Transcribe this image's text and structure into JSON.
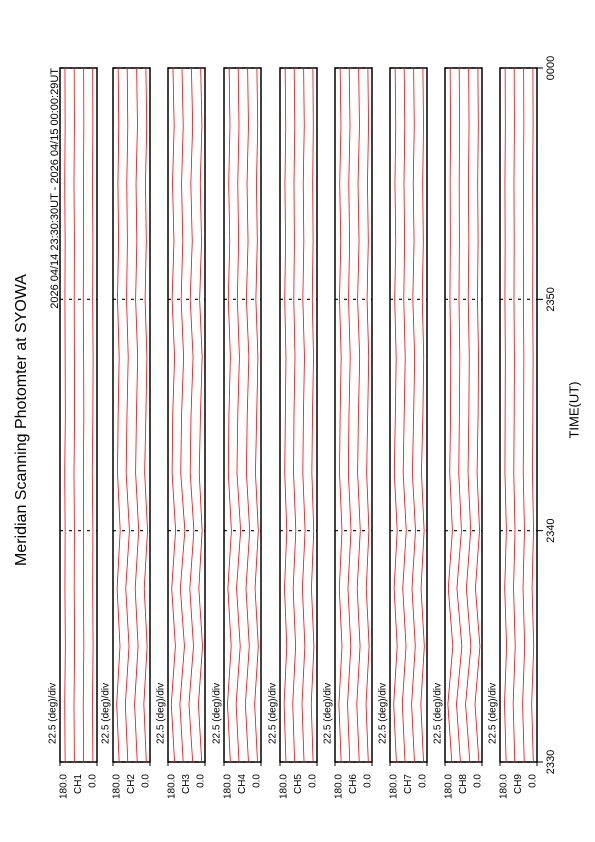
{
  "chart_data": {
    "type": "line",
    "color": "#ff0000",
    "title": "Meridian Scanning Photomter at SYOWA",
    "subtitle": "2026 04/14 23:30:30UT - 2026 04/15 00:00:29UT",
    "xlabel": "TIME(UT)",
    "xlim": [
      0,
      30
    ],
    "xticks": [
      {
        "value": 0,
        "label": "2330"
      },
      {
        "value": 10,
        "label": "2340"
      },
      {
        "value": 20,
        "label": "2350"
      },
      {
        "value": 30,
        "label": "0000"
      }
    ],
    "x": [
      0,
      2.5,
      5,
      7.5,
      10,
      12.5,
      15,
      17.5,
      20,
      22.5,
      25,
      27.5,
      30
    ],
    "panels": [
      {
        "label": "22.5 (deg)/div",
        "channel": "CH1",
        "ylim": [
          0,
          180
        ],
        "yticks": [
          {
            "value": 0,
            "label": "0.0"
          },
          {
            "value": 180,
            "label": "180.0"
          }
        ],
        "series": [
          {
            "values": [
              20,
              22,
              19,
              21,
              20,
              23,
              20,
              19,
              21,
              20,
              22,
              20,
              21
            ]
          },
          {
            "values": [
              65,
              67,
              64,
              66,
              65,
              66,
              64,
              65,
              67,
              65,
              66,
              64,
              65
            ]
          },
          {
            "values": [
              110,
              112,
              109,
              111,
              110,
              112,
              109,
              110,
              111,
              110,
              112,
              110,
              111
            ]
          },
          {
            "values": [
              155,
              157,
              154,
              156,
              155,
              157,
              154,
              155,
              156,
              155,
              157,
              155,
              156
            ]
          }
        ]
      },
      {
        "label": "22.5 (deg)/div",
        "channel": "CH2",
        "ylim": [
          0,
          180
        ],
        "yticks": [
          {
            "value": 0,
            "label": "0.0"
          },
          {
            "value": 180,
            "label": "180.0"
          }
        ],
        "series": [
          {
            "values": [
              18,
              30,
              14,
              28,
              12,
              26,
              20,
              15,
              24,
              18,
              22,
              16,
              20
            ]
          },
          {
            "values": [
              62,
              75,
              58,
              72,
              55,
              70,
              66,
              60,
              70,
              64,
              68,
              61,
              65
            ]
          },
          {
            "values": [
              108,
              120,
              102,
              118,
              100,
              116,
              112,
              106,
              114,
              110,
              113,
              108,
              111
            ]
          },
          {
            "values": [
              150,
              162,
              146,
              160,
              145,
              158,
              155,
              150,
              158,
              153,
              156,
              152,
              155
            ]
          }
        ]
      },
      {
        "label": "22.5 (deg)/div",
        "channel": "CH3",
        "ylim": [
          0,
          180
        ],
        "yticks": [
          {
            "value": 0,
            "label": "0.0"
          },
          {
            "value": 180,
            "label": "180.0"
          }
        ],
        "series": [
          {
            "values": [
              16,
              32,
              12,
              30,
              14,
              28,
              22,
              14,
              26,
              17,
              23,
              15,
              21
            ]
          },
          {
            "values": [
              60,
              78,
              56,
              74,
              54,
              72,
              68,
              58,
              72,
              62,
              69,
              60,
              66
            ]
          },
          {
            "values": [
              106,
              122,
              100,
              120,
              98,
              118,
              114,
              104,
              116,
              108,
              114,
              106,
              112
            ]
          },
          {
            "values": [
              148,
              164,
              144,
              162,
              143,
              160,
              157,
              148,
              160,
              151,
              158,
              150,
              156
            ]
          }
        ]
      },
      {
        "label": "22.5 (deg)/div",
        "channel": "CH4",
        "ylim": [
          0,
          180
        ],
        "yticks": [
          {
            "value": 0,
            "label": "0.0"
          },
          {
            "value": 180,
            "label": "180.0"
          }
        ],
        "series": [
          {
            "values": [
              17,
              31,
              13,
              29,
              13,
              27,
              21,
              15,
              25,
              18,
              22,
              16,
              20
            ]
          },
          {
            "values": [
              61,
              76,
              57,
              73,
              55,
              71,
              67,
              59,
              71,
              63,
              68,
              61,
              65
            ]
          },
          {
            "values": [
              107,
              121,
              101,
              119,
              99,
              117,
              113,
              105,
              115,
              109,
              113,
              107,
              111
            ]
          },
          {
            "values": [
              149,
              163,
              145,
              161,
              144,
              159,
              156,
              149,
              159,
              152,
              157,
              151,
              155
            ]
          }
        ]
      },
      {
        "label": "22.5 (deg)/div",
        "channel": "CH5",
        "ylim": [
          0,
          180
        ],
        "yticks": [
          {
            "value": 0,
            "label": "0.0"
          },
          {
            "value": 180,
            "label": "180.0"
          }
        ],
        "series": [
          {
            "values": [
              19,
              28,
              15,
              27,
              16,
              25,
              22,
              17,
              23,
              19,
              21,
              18,
              20
            ]
          },
          {
            "values": [
              63,
              73,
              59,
              71,
              58,
              69,
              66,
              61,
              69,
              64,
              67,
              62,
              65
            ]
          },
          {
            "values": [
              109,
              118,
              104,
              116,
              103,
              114,
              112,
              107,
              113,
              110,
              112,
              108,
              111
            ]
          },
          {
            "values": [
              151,
              160,
              147,
              158,
              147,
              157,
              154,
              151,
              157,
              153,
              156,
              152,
              155
            ]
          }
        ]
      },
      {
        "label": "22.5 (deg)/div",
        "channel": "CH6",
        "ylim": [
          0,
          180
        ],
        "yticks": [
          {
            "value": 0,
            "label": "0.0"
          },
          {
            "value": 180,
            "label": "180.0"
          }
        ],
        "series": [
          {
            "values": [
              18,
              29,
              14,
              28,
              15,
              26,
              21,
              16,
              24,
              18,
              22,
              17,
              20
            ]
          },
          {
            "values": [
              62,
              74,
              58,
              72,
              57,
              70,
              66,
              60,
              70,
              63,
              68,
              61,
              65
            ]
          },
          {
            "values": [
              108,
              119,
              103,
              117,
              102,
              115,
              112,
              106,
              114,
              109,
              113,
              107,
              111
            ]
          },
          {
            "values": [
              150,
              161,
              146,
              159,
              146,
              158,
              155,
              150,
              158,
              152,
              157,
              151,
              155
            ]
          }
        ]
      },
      {
        "label": "22.5 (deg)/div",
        "channel": "CH7",
        "ylim": [
          0,
          180
        ],
        "yticks": [
          {
            "value": 0,
            "label": "0.0"
          },
          {
            "value": 180,
            "label": "180.0"
          }
        ],
        "series": [
          {
            "values": [
              17,
              30,
              13,
              29,
              14,
              27,
              20,
              16,
              23,
              18,
              21,
              17,
              20
            ]
          },
          {
            "values": [
              61,
              75,
              57,
              73,
              56,
              71,
              65,
              60,
              69,
              63,
              67,
              62,
              65
            ]
          },
          {
            "values": [
              107,
              120,
              102,
              118,
              101,
              116,
              111,
              106,
              113,
              109,
              112,
              108,
              111
            ]
          },
          {
            "values": [
              149,
              162,
              145,
              160,
              145,
              159,
              154,
              150,
              157,
              152,
              156,
              152,
              155
            ]
          }
        ]
      },
      {
        "label": "22.5 (deg)/div",
        "channel": "CH8",
        "ylim": [
          0,
          180
        ],
        "yticks": [
          {
            "value": 0,
            "label": "0.0"
          },
          {
            "value": 180,
            "label": "180.0"
          }
        ],
        "series": [
          {
            "values": [
              15,
              34,
              10,
              32,
              12,
              24,
              19,
              17,
              22,
              19,
              21,
              18,
              20
            ]
          },
          {
            "values": [
              59,
              80,
              54,
              76,
              55,
              68,
              64,
              62,
              67,
              64,
              66,
              63,
              65
            ]
          },
          {
            "values": [
              105,
              124,
              98,
              122,
              100,
              113,
              110,
              108,
              112,
              110,
              111,
              109,
              111
            ]
          },
          {
            "values": [
              147,
              166,
              142,
              164,
              144,
              157,
              153,
              152,
              156,
              154,
              155,
              153,
              155
            ]
          }
        ]
      },
      {
        "label": "22.5 (deg)/div",
        "channel": "CH9",
        "ylim": [
          0,
          180
        ],
        "yticks": [
          {
            "value": 0,
            "label": "0.0"
          },
          {
            "value": 180,
            "label": "180.0"
          }
        ],
        "series": [
          {
            "values": [
              18,
              26,
              16,
              24,
              17,
              22,
              20,
              19,
              21,
              20,
              21,
              19,
              20
            ]
          },
          {
            "values": [
              62,
              70,
              60,
              68,
              61,
              67,
              65,
              64,
              66,
              65,
              66,
              64,
              65
            ]
          },
          {
            "values": [
              108,
              116,
              106,
              114,
              107,
              113,
              111,
              110,
              112,
              111,
              112,
              110,
              111
            ]
          },
          {
            "values": [
              150,
              158,
              148,
              157,
              149,
              156,
              155,
              154,
              156,
              155,
              156,
              154,
              155
            ]
          }
        ]
      }
    ]
  }
}
